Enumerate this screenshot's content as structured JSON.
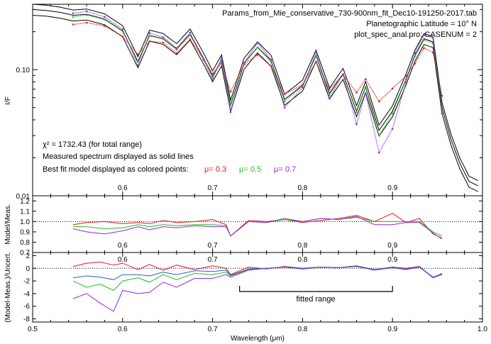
{
  "chart_data": [
    {
      "panel": "spectrum",
      "type": "line",
      "ylabel": "I/F",
      "yscale": "log",
      "ylim": [
        0.01,
        0.33
      ],
      "xlim": [
        0.5,
        1.0
      ],
      "yticks": [
        {
          "value": 0.1,
          "label": "0.10"
        },
        {
          "value": 0.01,
          "label": "0.01"
        }
      ],
      "x_tick_labels": [
        "0.6",
        "0.7",
        "0.8",
        "0.9"
      ],
      "header_lines": [
        "Params_from_Mie_conservative_730-900nm_fit_Dec10-191250-2017.tab",
        "Planetographic Latitude = 10° N",
        "plot_spec_anal.pro: CASENUM =  2"
      ],
      "chi2_text": "χ² = 1732.43 (for total range)",
      "measured_note": "Measured spectrum displayed as solid lines",
      "model_note": "Best fit model displayed as colored points:",
      "series": [
        {
          "name": "μ= 0.3",
          "color": "#e8141a",
          "x": [
            0.545,
            0.56,
            0.58,
            0.6,
            0.617,
            0.63,
            0.645,
            0.66,
            0.675,
            0.69,
            0.7,
            0.71,
            0.72,
            0.735,
            0.75,
            0.765,
            0.78,
            0.8,
            0.815,
            0.83,
            0.845,
            0.86,
            0.87,
            0.885,
            0.9,
            0.915,
            0.925,
            0.935,
            0.945,
            0.955
          ],
          "y": [
            0.228,
            0.236,
            0.222,
            0.183,
            0.132,
            0.168,
            0.164,
            0.135,
            0.174,
            0.121,
            0.093,
            0.112,
            0.067,
            0.11,
            0.131,
            0.107,
            0.064,
            0.076,
            0.115,
            0.07,
            0.091,
            0.066,
            0.084,
            0.056,
            0.071,
            0.089,
            0.112,
            0.148,
            0.137,
            0.062
          ]
        },
        {
          "name": "μ= 0.5",
          "color": "#1bc21b",
          "x": [
            0.545,
            0.56,
            0.58,
            0.6,
            0.617,
            0.63,
            0.645,
            0.66,
            0.675,
            0.69,
            0.7,
            0.71,
            0.72,
            0.735,
            0.75,
            0.765,
            0.78,
            0.8,
            0.815,
            0.83,
            0.845,
            0.86,
            0.87,
            0.885,
            0.9,
            0.915,
            0.925,
            0.935,
            0.945,
            0.955
          ],
          "y": [
            0.262,
            0.271,
            0.249,
            0.201,
            0.118,
            0.185,
            0.175,
            0.144,
            0.188,
            0.121,
            0.087,
            0.12,
            0.053,
            0.113,
            0.15,
            0.115,
            0.056,
            0.074,
            0.129,
            0.063,
            0.092,
            0.046,
            0.073,
            0.03,
            0.045,
            0.084,
            0.128,
            0.172,
            0.162,
            0.05
          ]
        },
        {
          "name": "μ= 0.7",
          "color": "#8c2be2",
          "x": [
            0.545,
            0.56,
            0.58,
            0.6,
            0.617,
            0.63,
            0.645,
            0.66,
            0.675,
            0.69,
            0.7,
            0.71,
            0.72,
            0.735,
            0.75,
            0.765,
            0.78,
            0.8,
            0.815,
            0.83,
            0.845,
            0.86,
            0.87,
            0.885,
            0.9,
            0.915,
            0.925,
            0.935,
            0.945,
            0.955
          ],
          "y": [
            0.28,
            0.29,
            0.262,
            0.21,
            0.108,
            0.195,
            0.181,
            0.148,
            0.197,
            0.119,
            0.083,
            0.124,
            0.046,
            0.113,
            0.163,
            0.12,
            0.05,
            0.072,
            0.138,
            0.059,
            0.092,
            0.037,
            0.065,
            0.022,
            0.034,
            0.079,
            0.135,
            0.188,
            0.178,
            0.045
          ]
        },
        {
          "name": "measured",
          "color": "#000000",
          "x": [
            0.5,
            0.515,
            0.53,
            0.545,
            0.56,
            0.58,
            0.6,
            0.617,
            0.63,
            0.645,
            0.66,
            0.675,
            0.69,
            0.7,
            0.71,
            0.72,
            0.735,
            0.75,
            0.765,
            0.78,
            0.8,
            0.815,
            0.83,
            0.845,
            0.86,
            0.87,
            0.885,
            0.9,
            0.915,
            0.925,
            0.935,
            0.945,
            0.955,
            0.965,
            0.975,
            0.985,
            0.995
          ],
          "y": [
            0.3,
            0.295,
            0.285,
            0.27,
            0.275,
            0.252,
            0.203,
            0.115,
            0.187,
            0.176,
            0.146,
            0.191,
            0.123,
            0.089,
            0.119,
            0.052,
            0.112,
            0.151,
            0.118,
            0.058,
            0.075,
            0.13,
            0.065,
            0.093,
            0.047,
            0.073,
            0.033,
            0.047,
            0.084,
            0.13,
            0.176,
            0.166,
            0.05,
            0.028,
            0.018,
            0.013,
            0.012
          ]
        }
      ]
    },
    {
      "panel": "ratio",
      "type": "line",
      "ylabel": "Model/Meas.",
      "ylim": [
        0.7,
        1.25
      ],
      "yticks": [
        "1.2",
        "1.1",
        "1.0",
        "0.9",
        "0.8",
        "0.7"
      ],
      "reference_line": 1.0,
      "x_tick_labels": [
        "0.6",
        "0.7",
        "0.8",
        "0.9"
      ],
      "series": [
        {
          "name": "μ= 0.3",
          "color": "#e8141a",
          "x": [
            0.545,
            0.56,
            0.58,
            0.6,
            0.617,
            0.63,
            0.645,
            0.66,
            0.68,
            0.7,
            0.715,
            0.72,
            0.74,
            0.76,
            0.78,
            0.8,
            0.82,
            0.84,
            0.86,
            0.88,
            0.9,
            0.915,
            0.93,
            0.945,
            0.955
          ],
          "y": [
            0.97,
            0.99,
            1.0,
            0.98,
            0.99,
            0.98,
            1.01,
            0.99,
            1.0,
            1.02,
            0.97,
            0.86,
            1.01,
            1.0,
            1.02,
            0.99,
            1.01,
            1.03,
            1.06,
            1.0,
            1.08,
            0.99,
            1.03,
            0.88,
            0.84
          ]
        },
        {
          "name": "μ= 0.5",
          "color": "#1bc21b",
          "x": [
            0.545,
            0.56,
            0.58,
            0.6,
            0.617,
            0.63,
            0.645,
            0.66,
            0.68,
            0.7,
            0.715,
            0.72,
            0.74,
            0.76,
            0.78,
            0.8,
            0.82,
            0.84,
            0.86,
            0.88,
            0.9,
            0.915,
            0.93,
            0.945,
            0.955
          ],
          "y": [
            0.95,
            0.95,
            0.93,
            0.94,
            0.97,
            0.95,
            0.97,
            0.96,
            0.97,
            0.97,
            0.96,
            0.86,
            1.0,
            0.99,
            1.02,
            1.0,
            1.03,
            1.02,
            1.04,
            1.0,
            1.0,
            1.0,
            1.0,
            0.9,
            0.86
          ]
        },
        {
          "name": "μ= 0.7",
          "color": "#8c2be2",
          "x": [
            0.545,
            0.56,
            0.58,
            0.6,
            0.617,
            0.63,
            0.645,
            0.66,
            0.68,
            0.7,
            0.715,
            0.72,
            0.74,
            0.76,
            0.78,
            0.8,
            0.82,
            0.84,
            0.86,
            0.88,
            0.9,
            0.915,
            0.93,
            0.945,
            0.955
          ],
          "y": [
            0.93,
            0.9,
            0.88,
            0.91,
            0.95,
            0.92,
            0.95,
            0.94,
            0.96,
            0.95,
            0.95,
            0.86,
            1.0,
            0.99,
            1.03,
            1.0,
            1.03,
            1.02,
            1.05,
            0.97,
            0.97,
            0.99,
            0.99,
            0.89,
            0.83
          ]
        }
      ]
    },
    {
      "panel": "residual",
      "type": "line",
      "ylabel": "(Model-Meas.)/Uncert.",
      "ylim": [
        -8.5,
        2.5
      ],
      "yticks": [
        "2",
        "0",
        "-2",
        "-4",
        "-6",
        "-8"
      ],
      "reference_line": 0,
      "xlabel": "Wavelength (μm)",
      "x_tick_labels": [
        "0.5",
        "0.6",
        "0.7",
        "0.8",
        "0.9",
        "1.0"
      ],
      "inner_x_tick_labels": [
        "0.6",
        "0.7",
        "0.8",
        "0.9"
      ],
      "fitted_range": [
        0.73,
        0.9
      ],
      "fitted_range_label": "fitted range",
      "series": [
        {
          "name": "μ= 0.3",
          "color": "#e8141a",
          "x": [
            0.545,
            0.56,
            0.575,
            0.59,
            0.6,
            0.617,
            0.63,
            0.645,
            0.66,
            0.68,
            0.7,
            0.715,
            0.72,
            0.74,
            0.76,
            0.78,
            0.8,
            0.82,
            0.84,
            0.86,
            0.88,
            0.9,
            0.915,
            0.93,
            0.945,
            0.955
          ],
          "y": [
            0.3,
            0.8,
            1.0,
            0.5,
            0.8,
            -0.2,
            0.6,
            -0.3,
            0.5,
            -0.2,
            0.4,
            0.0,
            -1.0,
            0.2,
            -0.1,
            0.3,
            0.0,
            0.2,
            0.1,
            0.4,
            -0.2,
            0.2,
            0.0,
            0.3,
            -1.5,
            -0.8
          ]
        },
        {
          "name": "μ= 0.5",
          "color": "#1bc21b",
          "x": [
            0.545,
            0.56,
            0.575,
            0.59,
            0.6,
            0.617,
            0.63,
            0.645,
            0.66,
            0.68,
            0.7,
            0.715,
            0.72,
            0.74,
            0.76,
            0.78,
            0.8,
            0.82,
            0.84,
            0.86,
            0.88,
            0.9,
            0.915,
            0.93,
            0.945,
            0.955
          ],
          "y": [
            -2.0,
            -3.0,
            -2.5,
            -3.5,
            -2.0,
            -1.5,
            -2.2,
            -1.0,
            -1.8,
            -0.8,
            -1.0,
            -0.6,
            -1.2,
            -0.2,
            0.0,
            0.2,
            -0.1,
            0.2,
            0.1,
            0.3,
            -0.2,
            0.1,
            -0.1,
            0.2,
            -1.4,
            -0.9
          ]
        },
        {
          "name": "μ= 0.7",
          "color": "#8c2be2",
          "x": [
            0.545,
            0.56,
            0.575,
            0.59,
            0.6,
            0.617,
            0.63,
            0.645,
            0.66,
            0.68,
            0.7,
            0.715,
            0.72,
            0.74,
            0.76,
            0.78,
            0.8,
            0.82,
            0.84,
            0.86,
            0.88,
            0.9,
            0.915,
            0.93,
            0.945,
            0.955
          ],
          "y": [
            -4.8,
            -4.0,
            -5.5,
            -6.8,
            -3.5,
            -4.0,
            -3.8,
            -2.2,
            -3.0,
            -1.6,
            -1.6,
            -1.0,
            -1.4,
            -0.3,
            0.0,
            0.2,
            -0.1,
            0.2,
            0.1,
            0.3,
            -0.3,
            0.1,
            -0.2,
            0.2,
            -1.5,
            -1.0
          ]
        },
        {
          "name": "blue",
          "color": "#2a5bd7",
          "x": [
            0.545,
            0.56,
            0.575,
            0.59,
            0.6,
            0.617,
            0.63,
            0.645,
            0.66,
            0.68,
            0.7,
            0.715,
            0.72,
            0.74,
            0.76,
            0.78,
            0.8,
            0.82,
            0.84,
            0.86,
            0.88,
            0.9,
            0.915,
            0.93,
            0.945,
            0.955
          ],
          "y": [
            -1.5,
            -1.2,
            -1.4,
            -1.8,
            -1.0,
            -1.0,
            -1.2,
            -0.6,
            -1.0,
            -0.4,
            -0.5,
            -0.3,
            -1.1,
            -0.1,
            0.0,
            0.2,
            0.0,
            0.2,
            0.1,
            0.3,
            -0.2,
            0.1,
            -0.1,
            0.2,
            -1.4,
            -0.9
          ]
        }
      ]
    }
  ]
}
